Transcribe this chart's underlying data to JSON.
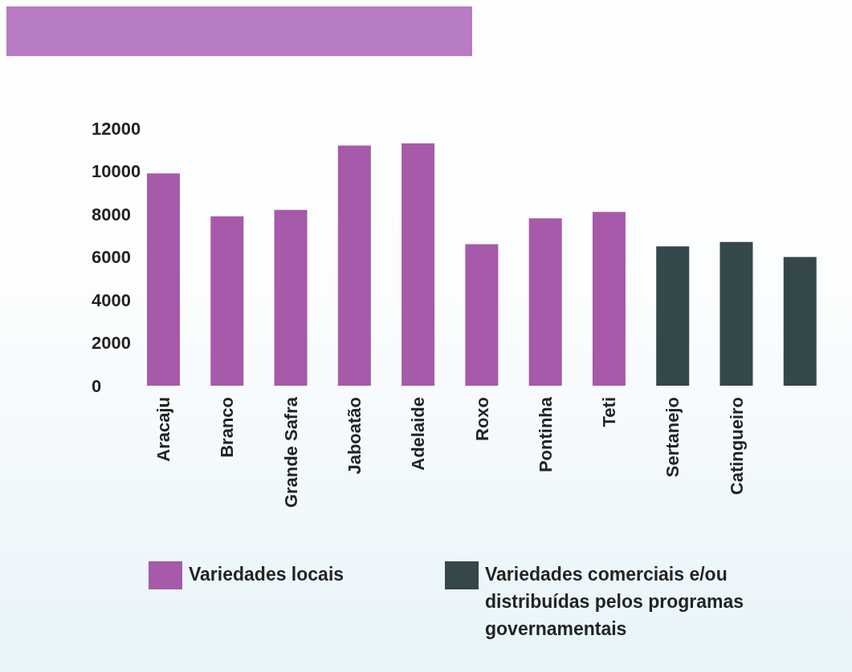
{
  "chart_data": {
    "type": "bar",
    "categories": [
      "Aracaju",
      "Branco",
      "Grande Safra",
      "Jaboatão",
      "Adelaide",
      "Roxo",
      "Pontinha",
      "Teti",
      "Sertanejo",
      "Catingueiro",
      null
    ],
    "series": [
      {
        "name": "Variedades locais",
        "color": "#a65aa9",
        "values": [
          9900,
          7900,
          8200,
          11200,
          11300,
          6600,
          7800,
          8100,
          null,
          null,
          null
        ]
      },
      {
        "name": "Variedades comerciais e/ou distribuídas pelos programas governamentais",
        "color": "#34474b",
        "values": [
          null,
          null,
          null,
          null,
          null,
          null,
          null,
          null,
          6500,
          6700,
          6000
        ]
      }
    ],
    "stacked": true,
    "ylim": [
      0,
      12000
    ],
    "yticks": [
      0,
      2000,
      4000,
      6000,
      8000,
      10000,
      12000
    ],
    "legend": "bottom"
  }
}
